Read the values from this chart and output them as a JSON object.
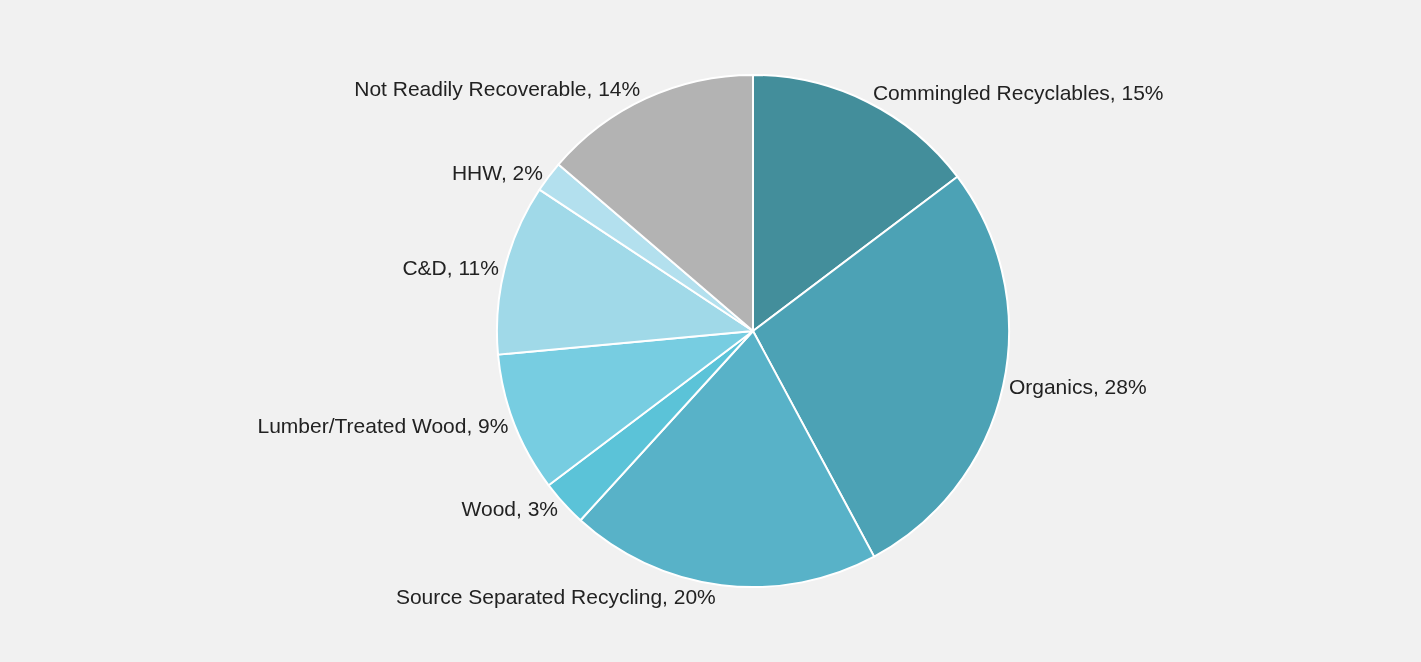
{
  "chart_data": {
    "type": "pie",
    "categories": [
      "Commingled Recyclables",
      "Organics",
      "Source Separated Recycling",
      "Wood",
      "Lumber/Treated Wood",
      "C&D",
      "HHW",
      "Not Readily Recoverable"
    ],
    "values": [
      15,
      28,
      20,
      3,
      9,
      11,
      2,
      14
    ],
    "value_labels": [
      "15%",
      "28%",
      "20%",
      "3%",
      "9%",
      "11%",
      "2%",
      "14%"
    ],
    "colors": [
      "#438e9b",
      "#4ca2b5",
      "#58b2c8",
      "#5bc3d8",
      "#77cde1",
      "#a0d9e8",
      "#b3e0ee",
      "#b3b3b3"
    ],
    "legend": false
  }
}
